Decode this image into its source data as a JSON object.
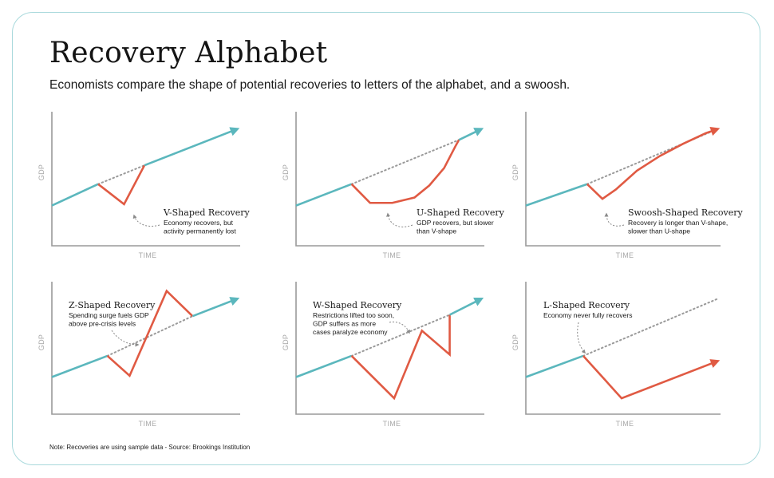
{
  "title": "Recovery Alphabet",
  "subtitle": "Economists compare the shape of potential recoveries to letters of the alphabet, and a swoosh.",
  "note": "Note: Recoveries are using sample data - Source: Brookings Institution",
  "colors": {
    "pre_crisis": "#5bb7bd",
    "recovery": "#e05a43",
    "trend": "#9a9a9a",
    "axis": "#9a9a9a"
  },
  "chart_data": [
    {
      "type": "line",
      "title": "V-Shaped Recovery",
      "annotation": [
        "Economy recovers, but",
        "activity permanently lost"
      ],
      "xlabel": "TIME",
      "ylabel": "GDP",
      "series": [
        {
          "x": [
            0,
            25
          ],
          "y": [
            30,
            46
          ]
        },
        {
          "x": [
            25,
            39,
            50
          ],
          "y": [
            46,
            31,
            60
          ]
        },
        {
          "x": [
            50,
            100
          ],
          "y": [
            60,
            87
          ]
        }
      ],
      "trend": {
        "x": [
          25,
          50
        ],
        "y": [
          46,
          60
        ]
      }
    },
    {
      "type": "line",
      "title": "U-Shaped Recovery",
      "annotation": [
        "GDP recovers, but slower",
        "than V-shape"
      ],
      "xlabel": "TIME",
      "ylabel": "GDP",
      "series": [
        {
          "x": [
            0,
            30
          ],
          "y": [
            30,
            46
          ]
        },
        {
          "x": [
            30,
            40,
            52,
            64,
            72,
            80,
            86,
            88
          ],
          "y": [
            46,
            32,
            32,
            36,
            45,
            58,
            74,
            79
          ]
        },
        {
          "x": [
            88,
            100
          ],
          "y": [
            79,
            87
          ]
        }
      ],
      "trend": {
        "x": [
          30,
          88
        ],
        "y": [
          46,
          79
        ]
      }
    },
    {
      "type": "line",
      "title": "Swoosh-Shaped Recovery",
      "annotation": [
        "Recovery is longer than V-shape,",
        "slower than U-shape"
      ],
      "xlabel": "TIME",
      "ylabel": "GDP",
      "series": [
        {
          "x": [
            0,
            32
          ],
          "y": [
            30,
            46
          ]
        },
        {
          "x": [
            32,
            40,
            47,
            58,
            70,
            82,
            94,
            100
          ],
          "y": [
            46,
            35,
            42,
            56,
            67,
            76,
            84,
            87
          ]
        }
      ],
      "trend": {
        "x": [
          32,
          100
        ],
        "y": [
          46,
          87
        ]
      }
    },
    {
      "type": "line",
      "title": "Z-Shaped Recovery",
      "annotation": [
        "Spending surge fuels GDP",
        "above pre-crisis levels"
      ],
      "xlabel": "TIME",
      "ylabel": "GDP",
      "series": [
        {
          "x": [
            0,
            30
          ],
          "y": [
            28,
            44
          ]
        },
        {
          "x": [
            30,
            42,
            62,
            76
          ],
          "y": [
            44,
            29,
            93,
            74
          ]
        },
        {
          "x": [
            76,
            100
          ],
          "y": [
            74,
            87
          ]
        }
      ],
      "trend": {
        "x": [
          30,
          76
        ],
        "y": [
          44,
          74
        ]
      }
    },
    {
      "type": "line",
      "title": "W-Shaped Recovery",
      "annotation": [
        "Restrictions lifted too soon,",
        "GDP suffers as more",
        "cases paralyze economy"
      ],
      "xlabel": "TIME",
      "ylabel": "GDP",
      "series": [
        {
          "x": [
            0,
            30
          ],
          "y": [
            28,
            44
          ]
        },
        {
          "x": [
            30,
            53,
            68,
            83,
            83
          ],
          "y": [
            44,
            12,
            63,
            45,
            75
          ]
        },
        {
          "x": [
            83,
            100
          ],
          "y": [
            75,
            87
          ]
        }
      ],
      "trend": {
        "x": [
          30,
          83
        ],
        "y": [
          44,
          75
        ]
      }
    },
    {
      "type": "line",
      "title": "L-Shaped Recovery",
      "annotation": [
        "Economy never fully recovers"
      ],
      "xlabel": "TIME",
      "ylabel": "GDP",
      "series": [
        {
          "x": [
            0,
            30
          ],
          "y": [
            28,
            44
          ]
        },
        {
          "x": [
            30,
            50,
            100
          ],
          "y": [
            44,
            12,
            40
          ]
        }
      ],
      "trend": {
        "x": [
          30,
          100
        ],
        "y": [
          44,
          87
        ]
      }
    }
  ]
}
